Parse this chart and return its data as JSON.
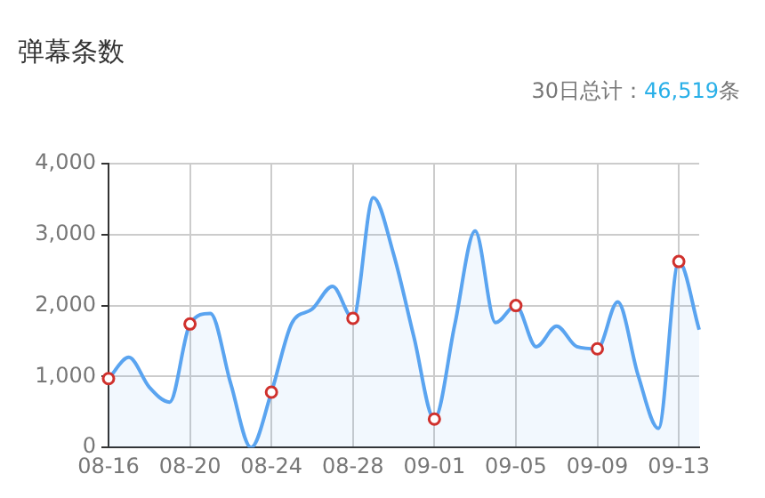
{
  "chart_data": {
    "type": "area",
    "title": "弹幕条数",
    "subtitle": "30日总计：46,519条",
    "categories": [
      "08-16",
      null,
      null,
      null,
      "08-20",
      null,
      null,
      null,
      "08-24",
      null,
      null,
      null,
      "08-28",
      null,
      null,
      null,
      "09-01",
      null,
      null,
      null,
      "09-05",
      null,
      null,
      null,
      "09-09",
      null,
      null,
      null,
      "09-13",
      null
    ],
    "series": [
      {
        "color": "#5aa4f0",
        "marker": "none",
        "values": [
          970,
          1270,
          850,
          640,
          1740,
          1890,
          900,
          0,
          780,
          1750,
          1950,
          2270,
          1820,
          3520,
          2720,
          1550,
          400,
          1730,
          3050,
          1760,
          2000,
          1420,
          1710,
          1420,
          1390,
          2050,
          1020,
          270,
          2620,
          1660
        ]
      },
      {
        "type": "scatter",
        "color": "#d0312d",
        "x": [
          "08-16",
          "08-20",
          "08-24",
          "08-28",
          "09-01",
          "09-05",
          "09-09",
          "09-13"
        ],
        "values": [
          970,
          1740,
          780,
          1820,
          400,
          2000,
          1390,
          2620
        ]
      }
    ],
    "ylim": [
      0,
      4000
    ],
    "yticks": [
      {
        "value": 0,
        "label": "0"
      },
      {
        "value": 1000,
        "label": "1,000"
      },
      {
        "value": 2000,
        "label": "2,000"
      },
      {
        "value": 3000,
        "label": "3,000"
      },
      {
        "value": 4000,
        "label": "4,000"
      }
    ],
    "grid": true,
    "legend": false,
    "marker": "circle"
  }
}
